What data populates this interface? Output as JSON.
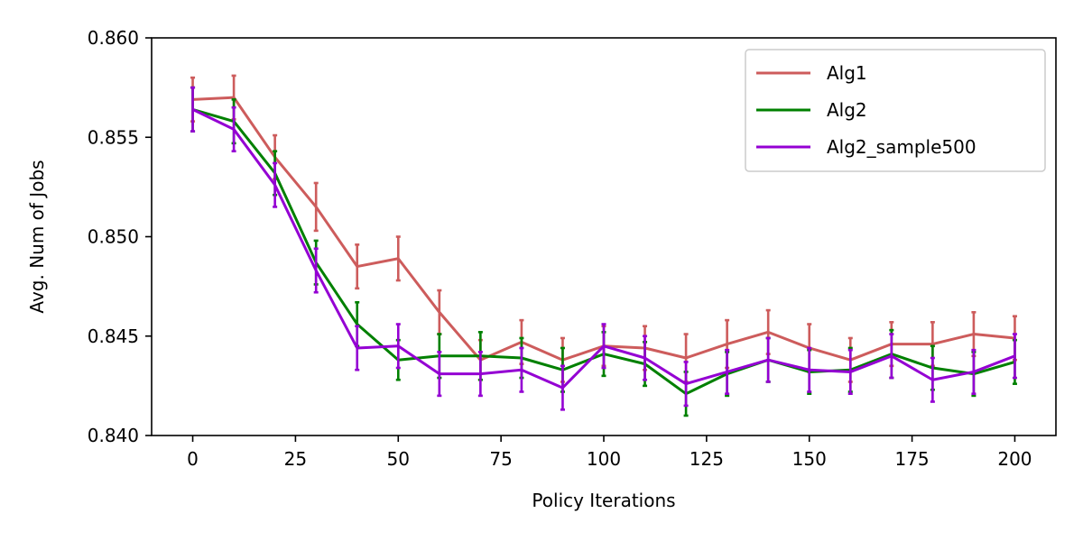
{
  "chart_data": {
    "type": "line",
    "title": "",
    "xlabel": "Policy Iterations",
    "ylabel": "Avg. Num of Jobs",
    "xlim": [
      -10,
      210
    ],
    "ylim": [
      0.84,
      0.86
    ],
    "x_ticks": [
      0,
      25,
      50,
      75,
      100,
      125,
      150,
      175,
      200
    ],
    "x_tick_labels": [
      "0",
      "25",
      "50",
      "75",
      "100",
      "125",
      "150",
      "175",
      "200"
    ],
    "y_ticks": [
      0.84,
      0.845,
      0.85,
      0.855,
      0.86
    ],
    "y_tick_labels": [
      "0.840",
      "0.845",
      "0.850",
      "0.855",
      "0.860"
    ],
    "grid": false,
    "legend_position": "top-right",
    "x": [
      0,
      10,
      20,
      30,
      40,
      50,
      60,
      70,
      80,
      90,
      100,
      110,
      120,
      130,
      140,
      150,
      160,
      170,
      180,
      190,
      200
    ],
    "series": [
      {
        "name": "Alg1",
        "color": "#cd5c5c",
        "values": [
          0.8569,
          0.857,
          0.854,
          0.8515,
          0.8485,
          0.8489,
          0.8462,
          0.8438,
          0.8447,
          0.8438,
          0.8445,
          0.8444,
          0.8439,
          0.8446,
          0.8452,
          0.8444,
          0.8438,
          0.8446,
          0.8446,
          0.8451,
          0.8449
        ],
        "errors": [
          0.0011,
          0.0011,
          0.0011,
          0.0012,
          0.0011,
          0.0011,
          0.0011,
          0.001,
          0.0011,
          0.0011,
          0.001,
          0.0011,
          0.0012,
          0.0012,
          0.0011,
          0.0012,
          0.0011,
          0.0011,
          0.0011,
          0.0011,
          0.0011
        ]
      },
      {
        "name": "Alg2",
        "color": "#008000",
        "values": [
          0.8564,
          0.8558,
          0.8532,
          0.8487,
          0.8456,
          0.8438,
          0.844,
          0.844,
          0.8439,
          0.8433,
          0.8441,
          0.8436,
          0.8421,
          0.8431,
          0.8438,
          0.8432,
          0.8433,
          0.8441,
          0.8434,
          0.8431,
          0.8437
        ],
        "errors": [
          0.0011,
          0.0011,
          0.0011,
          0.0011,
          0.0011,
          0.001,
          0.0011,
          0.0012,
          0.001,
          0.0011,
          0.0011,
          0.0011,
          0.0011,
          0.0011,
          0.0011,
          0.0011,
          0.0011,
          0.0012,
          0.0011,
          0.0011,
          0.0011
        ]
      },
      {
        "name": "Alg2_sample500",
        "color": "#9400d3",
        "values": [
          0.8564,
          0.8554,
          0.8526,
          0.8483,
          0.8444,
          0.8445,
          0.8431,
          0.8431,
          0.8433,
          0.8424,
          0.8445,
          0.8439,
          0.8426,
          0.8432,
          0.8438,
          0.8433,
          0.8432,
          0.844,
          0.8428,
          0.8432,
          0.844
        ],
        "errors": [
          0.0011,
          0.0011,
          0.0011,
          0.0011,
          0.0011,
          0.0011,
          0.0011,
          0.0011,
          0.0011,
          0.0011,
          0.0011,
          0.0011,
          0.0011,
          0.0011,
          0.0011,
          0.0011,
          0.0011,
          0.0011,
          0.0011,
          0.0011,
          0.0011
        ]
      }
    ]
  }
}
